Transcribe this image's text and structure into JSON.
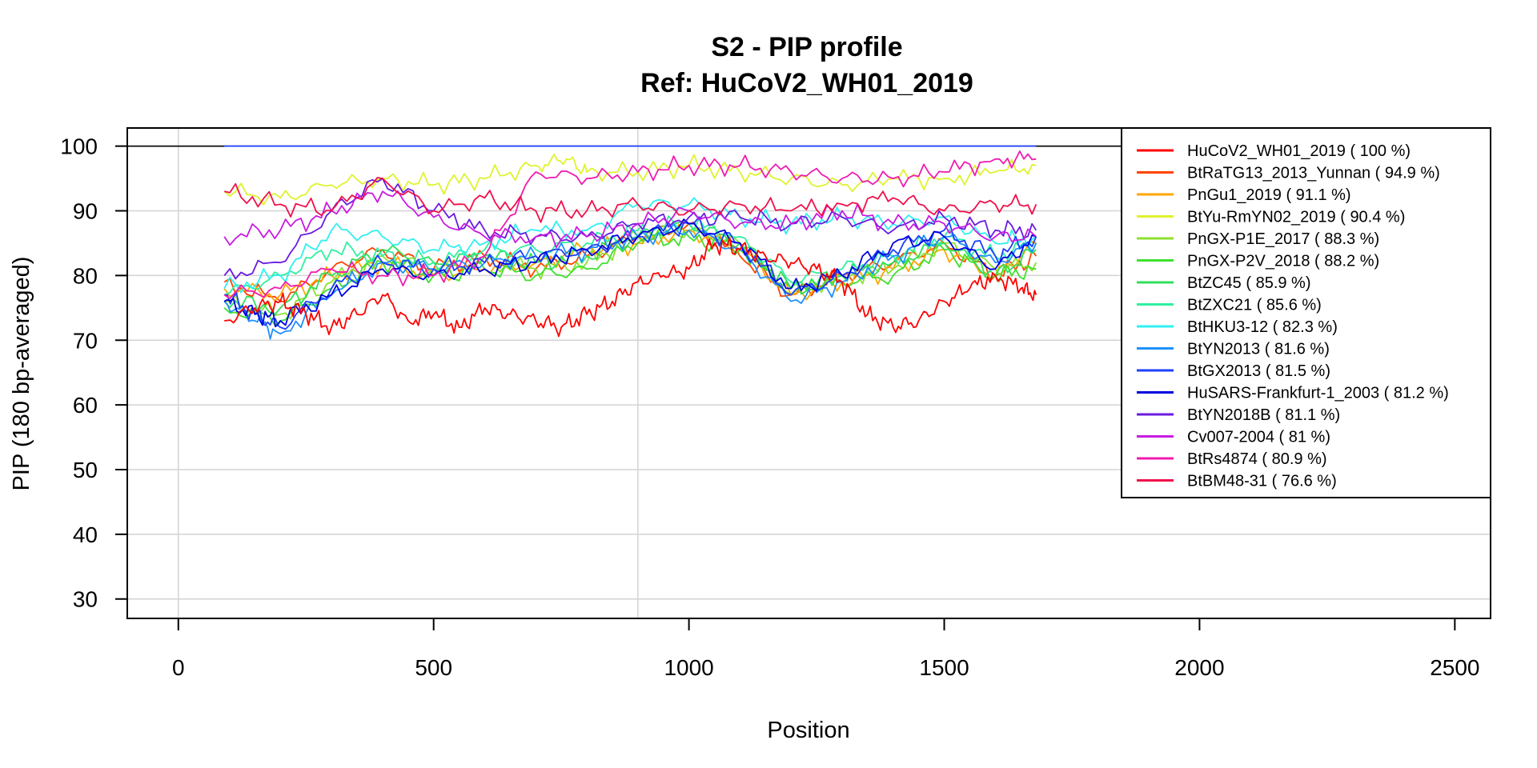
{
  "chart_data": {
    "type": "line",
    "title": "S2 - PIP profile",
    "subtitle": "Ref: HuCoV2_WH01_2019",
    "xlabel": "Position",
    "ylabel": "PIP (180 bp-averaged)",
    "xlim": [
      -100,
      2570
    ],
    "ylim": [
      27,
      102.8
    ],
    "x_ticks": [
      0,
      500,
      1000,
      1500,
      2000,
      2500
    ],
    "y_ticks": [
      30,
      40,
      50,
      60,
      70,
      80,
      90,
      100
    ],
    "x_grid": [
      0,
      900
    ],
    "grid": true,
    "legend_position": "top-right",
    "reference_line": {
      "y": 100,
      "color": "#000000"
    },
    "series": [
      {
        "name": "HuCoV2_WH01_2019 ( 100 %)",
        "color": "#FF0000",
        "x": [
          90,
          1680
        ],
        "y": [
          100,
          100
        ]
      },
      {
        "name": "BtRaTG13_2013_Yunnan ( 94.9 %)",
        "color": "#FF4500",
        "x": [
          90,
          200,
          300,
          400,
          500,
          600,
          700,
          800,
          900,
          1000,
          1100,
          1200,
          1300,
          1400,
          1500,
          1600,
          1680
        ],
        "y": [
          79,
          76,
          81,
          84,
          81,
          83,
          81,
          83,
          86,
          88,
          83,
          77,
          80,
          82,
          85,
          80,
          83
        ]
      },
      {
        "name": "PnGu1_2019 ( 91.1 %)",
        "color": "#FFA500",
        "x": [
          90,
          200,
          300,
          400,
          500,
          600,
          700,
          800,
          900,
          1000,
          1100,
          1200,
          1300,
          1400,
          1500,
          1600,
          1680
        ],
        "y": [
          78,
          77,
          80,
          82,
          80,
          81,
          82,
          84,
          85,
          87,
          84,
          77,
          79,
          81,
          84,
          80,
          85
        ]
      },
      {
        "name": "BtYu-RmYN02_2019 ( 90.4 %)",
        "color": "#DFF32D",
        "x": [
          90,
          200,
          300,
          400,
          500,
          600,
          700,
          760,
          800,
          900,
          1000,
          1100,
          1200,
          1300,
          1400,
          1500,
          1600,
          1680
        ],
        "y": [
          93,
          92,
          94,
          95,
          94,
          95,
          97,
          98,
          96,
          96,
          97,
          96,
          95,
          94,
          95,
          95,
          96,
          97
        ]
      },
      {
        "name": "PnGX-P1E_2017 ( 88.3 %)",
        "color": "#8FE02F",
        "x": [
          90,
          200,
          300,
          400,
          500,
          600,
          700,
          800,
          900,
          1000,
          1100,
          1200,
          1300,
          1400,
          1500,
          1600,
          1680
        ],
        "y": [
          76,
          74,
          79,
          83,
          81,
          82,
          81,
          82,
          86,
          87,
          85,
          77,
          80,
          81,
          85,
          81,
          82
        ]
      },
      {
        "name": "PnGX-P2V_2018 ( 88.2 %)",
        "color": "#3FE02F",
        "x": [
          90,
          200,
          300,
          400,
          500,
          600,
          700,
          800,
          900,
          1000,
          1100,
          1200,
          1300,
          1400,
          1500,
          1600,
          1680
        ],
        "y": [
          75,
          73,
          78,
          82,
          80,
          81,
          80,
          81,
          85,
          86,
          84,
          78,
          79,
          80,
          84,
          80,
          81
        ]
      },
      {
        "name": "BtZC45 ( 85.9 %)",
        "color": "#2FE05A",
        "x": [
          90,
          200,
          300,
          400,
          500,
          600,
          700,
          800,
          900,
          1000,
          1100,
          1200,
          1300,
          1400,
          1500,
          1600,
          1680
        ],
        "y": [
          76,
          75,
          80,
          84,
          82,
          83,
          82,
          83,
          86,
          88,
          85,
          78,
          80,
          82,
          85,
          80,
          84
        ]
      },
      {
        "name": "BtZXC21 ( 85.6 %)",
        "color": "#2FF0A0",
        "x": [
          90,
          200,
          300,
          400,
          500,
          600,
          700,
          800,
          900,
          1000,
          1100,
          1200,
          1300,
          1400,
          1500,
          1600,
          1680
        ],
        "y": [
          77,
          80,
          84,
          83,
          82,
          84,
          84,
          85,
          87,
          88,
          86,
          79,
          81,
          83,
          86,
          83,
          85
        ]
      },
      {
        "name": "BtHKU3-12 ( 82.3 %)",
        "color": "#2FF0F0",
        "x": [
          90,
          200,
          300,
          400,
          500,
          600,
          700,
          800,
          900,
          1000,
          1100,
          1200,
          1300,
          1400,
          1500,
          1600,
          1680
        ],
        "y": [
          78,
          80,
          87,
          86,
          84,
          85,
          87,
          87,
          91,
          91,
          89,
          88,
          89,
          88,
          89,
          85,
          86
        ]
      },
      {
        "name": "BtYN2013 ( 81.6 %)",
        "color": "#1E90FF",
        "x": [
          90,
          150,
          200,
          300,
          400,
          500,
          600,
          700,
          800,
          900,
          1000,
          1100,
          1200,
          1300,
          1400,
          1500,
          1600,
          1680
        ],
        "y": [
          76,
          73,
          71,
          77,
          82,
          81,
          82,
          83,
          84,
          86,
          87,
          84,
          76,
          79,
          83,
          86,
          82,
          85
        ]
      },
      {
        "name": "BtGX2013 ( 81.5 %)",
        "color": "#1E40FF",
        "x": [
          90,
          150,
          200,
          300,
          400,
          500,
          600,
          700,
          800,
          900,
          1000,
          1100,
          1200,
          1300,
          1400,
          1500,
          1600,
          1680
        ],
        "y": [
          77,
          74,
          72,
          78,
          82,
          81,
          82,
          83,
          84,
          86,
          88,
          85,
          77,
          80,
          84,
          87,
          83,
          86
        ]
      },
      {
        "name": "HuSARS-Frankfurt-1_2003 ( 81.2 %)",
        "color": "#0000E0",
        "x": [
          90,
          150,
          200,
          300,
          400,
          500,
          600,
          700,
          800,
          900,
          1000,
          1100,
          1200,
          1300,
          1400,
          1500,
          1600,
          1680
        ],
        "y": [
          76,
          74,
          73,
          77,
          81,
          80,
          81,
          82,
          84,
          86,
          88,
          85,
          78,
          80,
          85,
          86,
          81,
          86
        ]
      },
      {
        "name": "BtYN2018B ( 81.1 %)",
        "color": "#6A1BE0",
        "x": [
          90,
          200,
          300,
          400,
          500,
          600,
          700,
          800,
          900,
          1000,
          1100,
          1200,
          1300,
          1400,
          1500,
          1600,
          1680
        ],
        "y": [
          80,
          82,
          90,
          95,
          90,
          87,
          86,
          86,
          88,
          89,
          89,
          88,
          89,
          87,
          89,
          87,
          87
        ]
      },
      {
        "name": "Cv007-2004 ( 81 %)",
        "color": "#C81BE0",
        "x": [
          90,
          200,
          300,
          400,
          500,
          600,
          700,
          800,
          900,
          1000,
          1100,
          1200,
          1300,
          1400,
          1500,
          1600,
          1680
        ],
        "y": [
          86,
          87,
          90,
          93,
          89,
          86,
          86,
          86,
          88,
          90,
          88,
          88,
          90,
          88,
          88,
          86,
          86
        ]
      },
      {
        "name": "BtRs4874 ( 80.9 %)",
        "color": "#F01BB0",
        "x": [
          90,
          200,
          300,
          400,
          500,
          600,
          700,
          800,
          900,
          1000,
          1100,
          1200,
          1300,
          1400,
          1500,
          1600,
          1680
        ],
        "y": [
          77,
          78,
          81,
          80,
          80,
          83,
          96,
          95,
          96,
          97,
          97,
          96,
          95,
          95,
          96,
          98,
          98
        ]
      },
      {
        "name": "BtBM48-31 ( 76.6 %)",
        "color": "#F0104A",
        "x": [
          90,
          200,
          300,
          400,
          500,
          600,
          700,
          800,
          900,
          1000,
          1100,
          1200,
          1300,
          1400,
          1500,
          1600,
          1680
        ],
        "y": [
          93,
          91,
          90,
          95,
          90,
          92,
          90,
          90,
          91,
          90,
          91,
          90,
          91,
          92,
          90,
          91,
          91
        ]
      },
      {
        "name": "",
        "color": "#FF0000",
        "x": [
          90,
          150,
          200,
          250,
          300,
          350,
          400,
          450,
          500,
          550,
          600,
          650,
          700,
          750,
          800,
          850,
          900,
          950,
          1000,
          1050,
          1100,
          1150,
          1200,
          1250,
          1300,
          1350,
          1400,
          1450,
          1500,
          1550,
          1600,
          1650,
          1680
        ],
        "y": [
          73,
          75,
          76,
          74,
          72,
          74,
          77,
          73,
          74,
          72,
          75,
          74,
          73,
          72,
          74,
          76,
          79,
          80,
          81,
          85,
          84,
          83,
          82,
          81,
          79,
          74,
          72,
          73,
          76,
          78,
          80,
          78,
          77
        ]
      }
    ]
  }
}
